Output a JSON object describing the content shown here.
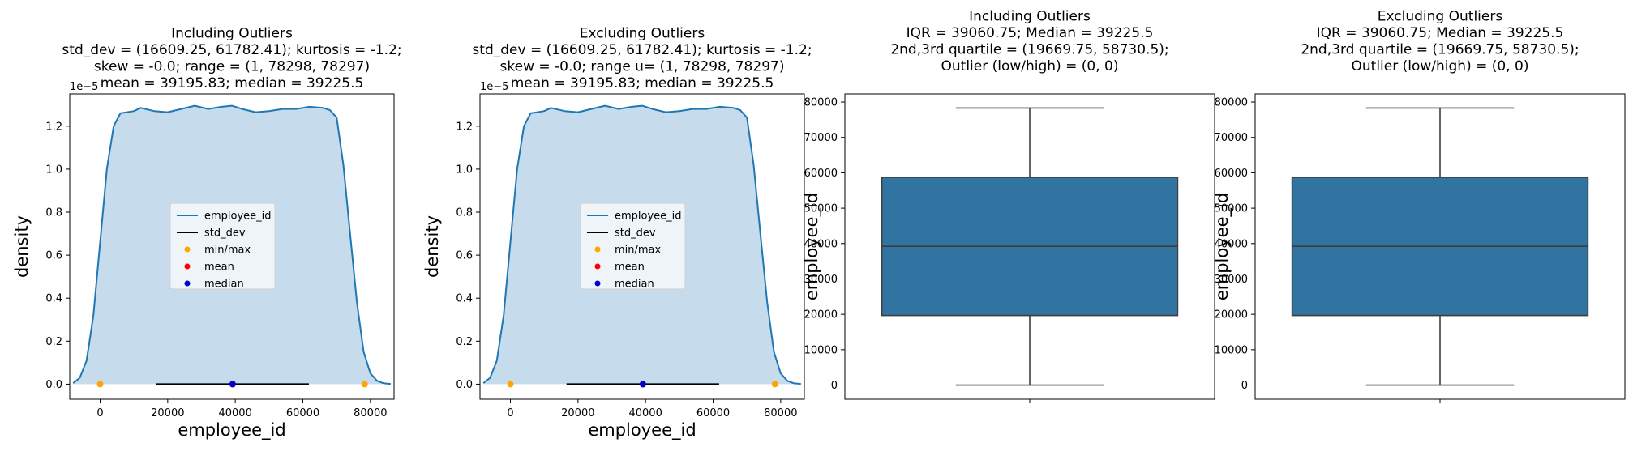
{
  "charts": [
    {
      "type": "area",
      "title_lines": [
        "Including Outliers",
        "std_dev = (16609.25, 61782.41); kurtosis = -1.2;",
        "skew = -0.0; range = (1, 78298, 78297)",
        "mean = 39195.83; median = 39225.5"
      ],
      "xlabel": "employee_id",
      "ylabel": "density",
      "exponent_label": "1e−5",
      "xlim": [
        -9000,
        87000
      ],
      "ylim": [
        -0.07,
        1.35
      ],
      "xticks": [
        0,
        20000,
        40000,
        60000,
        80000
      ],
      "yticks": [
        0.0,
        0.2,
        0.4,
        0.6,
        0.8,
        1.0,
        1.2
      ],
      "ytick_labels": [
        "0.0",
        "0.2",
        "0.4",
        "0.6",
        "0.8",
        "1.0",
        "1.2"
      ],
      "kde_x": [
        -8000,
        -6000,
        -4000,
        -2000,
        0,
        2000,
        4000,
        6000,
        8000,
        10000,
        12000,
        16000,
        20000,
        24000,
        28000,
        32000,
        36000,
        39000,
        42000,
        46000,
        50000,
        54000,
        58000,
        62000,
        66000,
        68000,
        70000,
        72000,
        74000,
        76000,
        78000,
        80000,
        82000,
        84000,
        86000
      ],
      "kde_y": [
        0.005,
        0.03,
        0.11,
        0.32,
        0.66,
        1.0,
        1.2,
        1.26,
        1.265,
        1.27,
        1.285,
        1.27,
        1.265,
        1.28,
        1.295,
        1.28,
        1.29,
        1.295,
        1.28,
        1.265,
        1.27,
        1.28,
        1.28,
        1.29,
        1.285,
        1.275,
        1.24,
        1.02,
        0.7,
        0.38,
        0.15,
        0.05,
        0.015,
        0.004,
        0.001
      ],
      "std_dev": [
        16609.25,
        61782.41
      ],
      "min_max": [
        1,
        78298
      ],
      "mean": 39195.83,
      "median": 39225.5,
      "legend": [
        "employee_id",
        "std_dev",
        "min/max",
        "mean",
        "median"
      ],
      "legend_position": "center",
      "colors": {
        "line": "#1f77b4",
        "fill": "#c6dbec",
        "std": "#000000",
        "minmax": "#ffa500",
        "mean": "#ff0000",
        "median": "#0000cd"
      }
    },
    {
      "type": "area",
      "title_lines": [
        "Excluding Outliers",
        "std_dev = (16609.25, 61782.41); kurtosis = -1.2;",
        "skew = -0.0; range u= (1, 78298, 78297)",
        "mean = 39195.83; median = 39225.5"
      ],
      "xlabel": "employee_id",
      "ylabel": "density",
      "exponent_label": "1e−5",
      "xlim": [
        -9000,
        87000
      ],
      "ylim": [
        -0.07,
        1.35
      ],
      "xticks": [
        0,
        20000,
        40000,
        60000,
        80000
      ],
      "yticks": [
        0.0,
        0.2,
        0.4,
        0.6,
        0.8,
        1.0,
        1.2
      ],
      "ytick_labels": [
        "0.0",
        "0.2",
        "0.4",
        "0.6",
        "0.8",
        "1.0",
        "1.2"
      ],
      "kde_x": [
        -8000,
        -6000,
        -4000,
        -2000,
        0,
        2000,
        4000,
        6000,
        8000,
        10000,
        12000,
        16000,
        20000,
        24000,
        28000,
        32000,
        36000,
        39000,
        42000,
        46000,
        50000,
        54000,
        58000,
        62000,
        66000,
        68000,
        70000,
        72000,
        74000,
        76000,
        78000,
        80000,
        82000,
        84000,
        86000
      ],
      "kde_y": [
        0.005,
        0.03,
        0.11,
        0.32,
        0.66,
        1.0,
        1.2,
        1.26,
        1.265,
        1.27,
        1.285,
        1.27,
        1.265,
        1.28,
        1.295,
        1.28,
        1.29,
        1.295,
        1.28,
        1.265,
        1.27,
        1.28,
        1.28,
        1.29,
        1.285,
        1.275,
        1.24,
        1.02,
        0.7,
        0.38,
        0.15,
        0.05,
        0.015,
        0.004,
        0.001
      ],
      "std_dev": [
        16609.25,
        61782.41
      ],
      "min_max": [
        1,
        78298
      ],
      "mean": 39195.83,
      "median": 39225.5,
      "legend": [
        "employee_id",
        "std_dev",
        "min/max",
        "mean",
        "median"
      ],
      "legend_position": "center",
      "colors": {
        "line": "#1f77b4",
        "fill": "#c6dbec",
        "std": "#000000",
        "minmax": "#ffa500",
        "mean": "#ff0000",
        "median": "#0000cd"
      }
    },
    {
      "type": "box",
      "title_lines": [
        "Including Outliers",
        "IQR = 39060.75; Median = 39225.5",
        "2nd,3rd  quartile = (19669.75, 58730.5);",
        "Outlier (low/high) = (0, 0)"
      ],
      "ylabel": "employee_id",
      "ylim": [
        -4000,
        82300
      ],
      "yticks": [
        0,
        10000,
        20000,
        30000,
        40000,
        50000,
        60000,
        70000,
        80000
      ],
      "whisker_low": 1,
      "q1": 19669.75,
      "median": 39225.5,
      "q3": 58730.5,
      "whisker_high": 78298,
      "colors": {
        "box": "#3274a1",
        "line": "#3d3d3d"
      }
    },
    {
      "type": "box",
      "title_lines": [
        "Excluding Outliers",
        "IQR = 39060.75; Median = 39225.5",
        "2nd,3rd  quartile = (19669.75, 58730.5);",
        "Outlier (low/high) = (0, 0)"
      ],
      "ylabel": "employee_id",
      "ylim": [
        -4000,
        82300
      ],
      "yticks": [
        0,
        10000,
        20000,
        30000,
        40000,
        50000,
        60000,
        70000,
        80000
      ],
      "whisker_low": 1,
      "q1": 19669.75,
      "median": 39225.5,
      "q3": 58730.5,
      "whisker_high": 78298,
      "colors": {
        "box": "#3274a1",
        "line": "#3d3d3d"
      }
    }
  ]
}
